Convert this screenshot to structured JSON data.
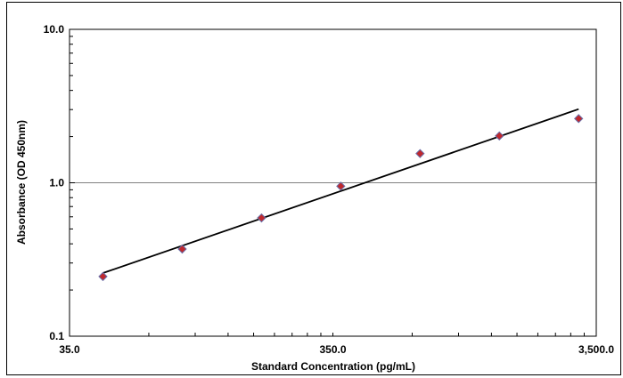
{
  "chart_data": {
    "type": "scatter",
    "title": "",
    "xlabel": "Standard Concentration (pg/mL)",
    "ylabel": "Absorbance (OD 450nm)",
    "x_scale": "log",
    "y_scale": "log",
    "xlim": [
      35.0,
      3500.0
    ],
    "ylim": [
      0.1,
      10.0
    ],
    "x_ticks": [
      {
        "value": 35.0,
        "label": "35.0"
      },
      {
        "value": 350.0,
        "label": "350.0"
      },
      {
        "value": 3500.0,
        "label": "3,500.0"
      }
    ],
    "y_ticks": [
      {
        "value": 0.1,
        "label": "0.1"
      },
      {
        "value": 1.0,
        "label": "1.0"
      },
      {
        "value": 10.0,
        "label": "10.0"
      }
    ],
    "grid": "horizontal-major",
    "legend": "none",
    "series": [
      {
        "marker": "diamond",
        "color": "#c0282d",
        "edge_color": "#6a6fa8",
        "x": [
          46.875,
          93.75,
          187.5,
          375,
          750,
          1500,
          3000
        ],
        "y": [
          0.245,
          0.37,
          0.59,
          0.95,
          1.55,
          2.02,
          2.62
        ]
      }
    ],
    "fit_line": {
      "color": "#000000",
      "x": [
        46.875,
        3000
      ],
      "y": [
        0.258,
        3.02
      ]
    }
  }
}
